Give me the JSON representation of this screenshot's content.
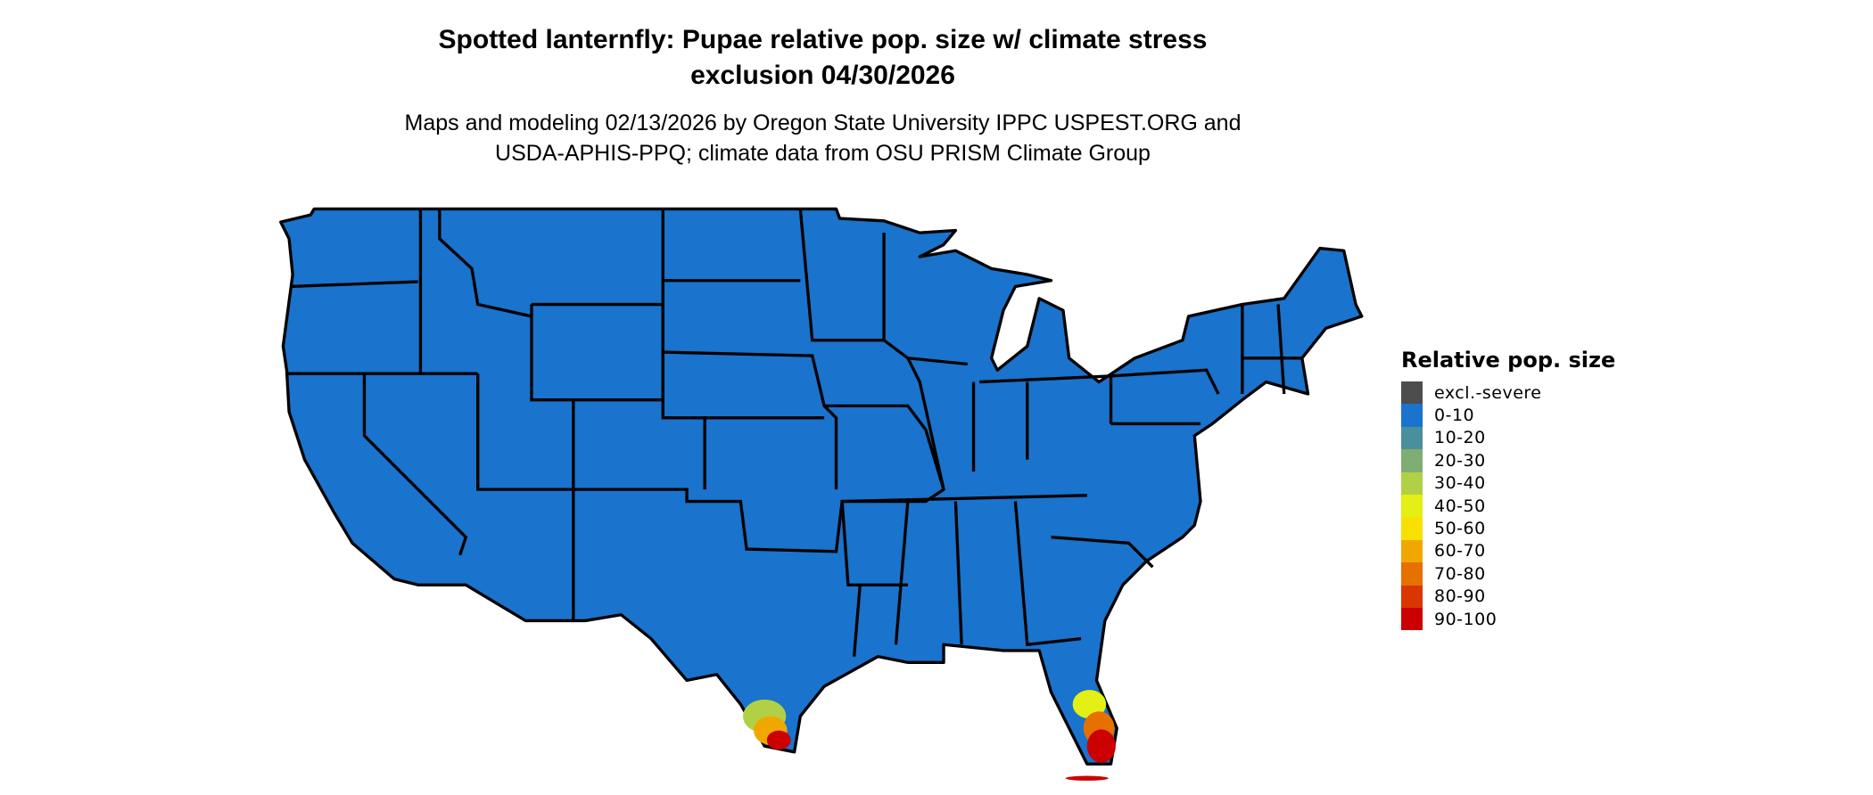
{
  "title_line1": "Spotted lanternfly: Pupae relative pop. size w/ climate stress",
  "title_line2": "exclusion 04/30/2026",
  "subtitle_line1": "Maps and modeling 02/13/2026 by Oregon State University IPPC USPEST.ORG and",
  "subtitle_line2": "USDA-APHIS-PPQ; climate data from OSU PRISM Climate Group",
  "map": {
    "region": "Contiguous United States",
    "base_color": "#1a73cc",
    "high_value_areas": [
      "South Texas",
      "South Florida"
    ]
  },
  "legend": {
    "title": "Relative pop. size",
    "items": [
      {
        "label": "excl.-severe",
        "color": "#4d4d4d"
      },
      {
        "label": "0-10",
        "color": "#1a73cc"
      },
      {
        "label": "10-20",
        "color": "#4a8f9c"
      },
      {
        "label": "20-30",
        "color": "#7fae72"
      },
      {
        "label": "30-40",
        "color": "#b1d045"
      },
      {
        "label": "40-50",
        "color": "#e3ef15"
      },
      {
        "label": "50-60",
        "color": "#f8e000"
      },
      {
        "label": "60-70",
        "color": "#f0a800"
      },
      {
        "label": "70-80",
        "color": "#e67000"
      },
      {
        "label": "80-90",
        "color": "#d93600"
      },
      {
        "label": "90-100",
        "color": "#cc0000"
      }
    ]
  }
}
